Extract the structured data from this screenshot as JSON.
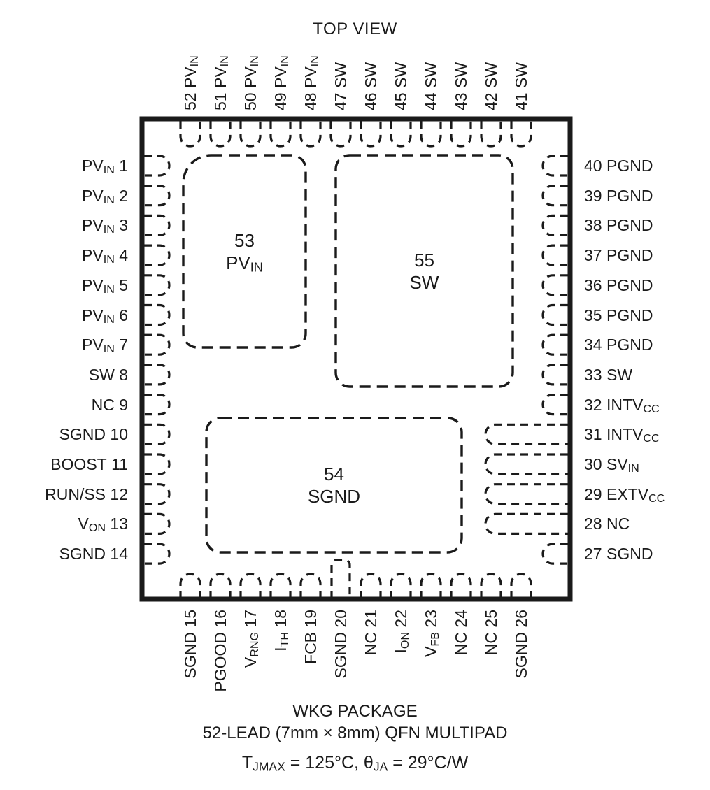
{
  "ink": "#1a1a1a",
  "background": "#ffffff",
  "title": "TOP VIEW",
  "pins": {
    "top": [
      {
        "num": "52",
        "pre": "PV",
        "sub": "IN"
      },
      {
        "num": "51",
        "pre": "PV",
        "sub": "IN"
      },
      {
        "num": "50",
        "pre": "PV",
        "sub": "IN"
      },
      {
        "num": "49",
        "pre": "PV",
        "sub": "IN"
      },
      {
        "num": "48",
        "pre": "PV",
        "sub": "IN"
      },
      {
        "num": "47",
        "pre": "SW"
      },
      {
        "num": "46",
        "pre": "SW"
      },
      {
        "num": "45",
        "pre": "SW"
      },
      {
        "num": "44",
        "pre": "SW"
      },
      {
        "num": "43",
        "pre": "SW"
      },
      {
        "num": "42",
        "pre": "SW"
      },
      {
        "num": "41",
        "pre": "SW"
      }
    ],
    "left": [
      {
        "num": "1",
        "pre": "PV",
        "sub": "IN"
      },
      {
        "num": "2",
        "pre": "PV",
        "sub": "IN"
      },
      {
        "num": "3",
        "pre": "PV",
        "sub": "IN"
      },
      {
        "num": "4",
        "pre": "PV",
        "sub": "IN"
      },
      {
        "num": "5",
        "pre": "PV",
        "sub": "IN"
      },
      {
        "num": "6",
        "pre": "PV",
        "sub": "IN"
      },
      {
        "num": "7",
        "pre": "PV",
        "sub": "IN"
      },
      {
        "num": "8",
        "pre": "SW"
      },
      {
        "num": "9",
        "pre": "NC"
      },
      {
        "num": "10",
        "pre": "SGND"
      },
      {
        "num": "11",
        "pre": "BOOST"
      },
      {
        "num": "12",
        "pre": "RUN/SS"
      },
      {
        "num": "13",
        "pre": "V",
        "sub": "ON"
      },
      {
        "num": "14",
        "pre": "SGND"
      }
    ],
    "right": [
      {
        "num": "40",
        "pre": "PGND"
      },
      {
        "num": "39",
        "pre": "PGND"
      },
      {
        "num": "38",
        "pre": "PGND"
      },
      {
        "num": "37",
        "pre": "PGND"
      },
      {
        "num": "36",
        "pre": "PGND"
      },
      {
        "num": "35",
        "pre": "PGND"
      },
      {
        "num": "34",
        "pre": "PGND"
      },
      {
        "num": "33",
        "pre": "SW"
      },
      {
        "num": "32",
        "pre": "INTV",
        "sub": "CC"
      },
      {
        "num": "31",
        "pre": "INTV",
        "sub": "CC",
        "long": true
      },
      {
        "num": "30",
        "pre": "SV",
        "sub": "IN",
        "long": true
      },
      {
        "num": "29",
        "pre": "EXTV",
        "sub": "CC",
        "long": true
      },
      {
        "num": "28",
        "pre": "NC",
        "long": true
      },
      {
        "num": "27",
        "pre": "SGND"
      }
    ],
    "bottom": [
      {
        "num": "15",
        "pre": "SGND"
      },
      {
        "num": "16",
        "pre": "PGOOD"
      },
      {
        "num": "17",
        "pre": "V",
        "sub": "RNG"
      },
      {
        "num": "18",
        "pre": "I",
        "sub": "TH"
      },
      {
        "num": "19",
        "pre": "FCB"
      },
      {
        "num": "20",
        "pre": "SGND",
        "tall": true
      },
      {
        "num": "21",
        "pre": "NC"
      },
      {
        "num": "22",
        "pre": "I",
        "sub": "ON"
      },
      {
        "num": "23",
        "pre": "V",
        "sub": "FB"
      },
      {
        "num": "24",
        "pre": "NC"
      },
      {
        "num": "25",
        "pre": "NC"
      },
      {
        "num": "26",
        "pre": "SGND"
      }
    ]
  },
  "pads": [
    {
      "num": "53",
      "pre": "PV",
      "sub": "IN"
    },
    {
      "num": "55",
      "pre": "SW"
    },
    {
      "num": "54",
      "pre": "SGND"
    }
  ],
  "footer": {
    "package_name": "WKG PACKAGE",
    "package_desc": "52-LEAD (7mm × 8mm) QFN MULTIPAD",
    "thermal": {
      "t1": "T",
      "s1": "JMAX",
      "t2": " = 125°C, θ",
      "s2": "JA",
      "t3": " = 29°C/W"
    }
  }
}
